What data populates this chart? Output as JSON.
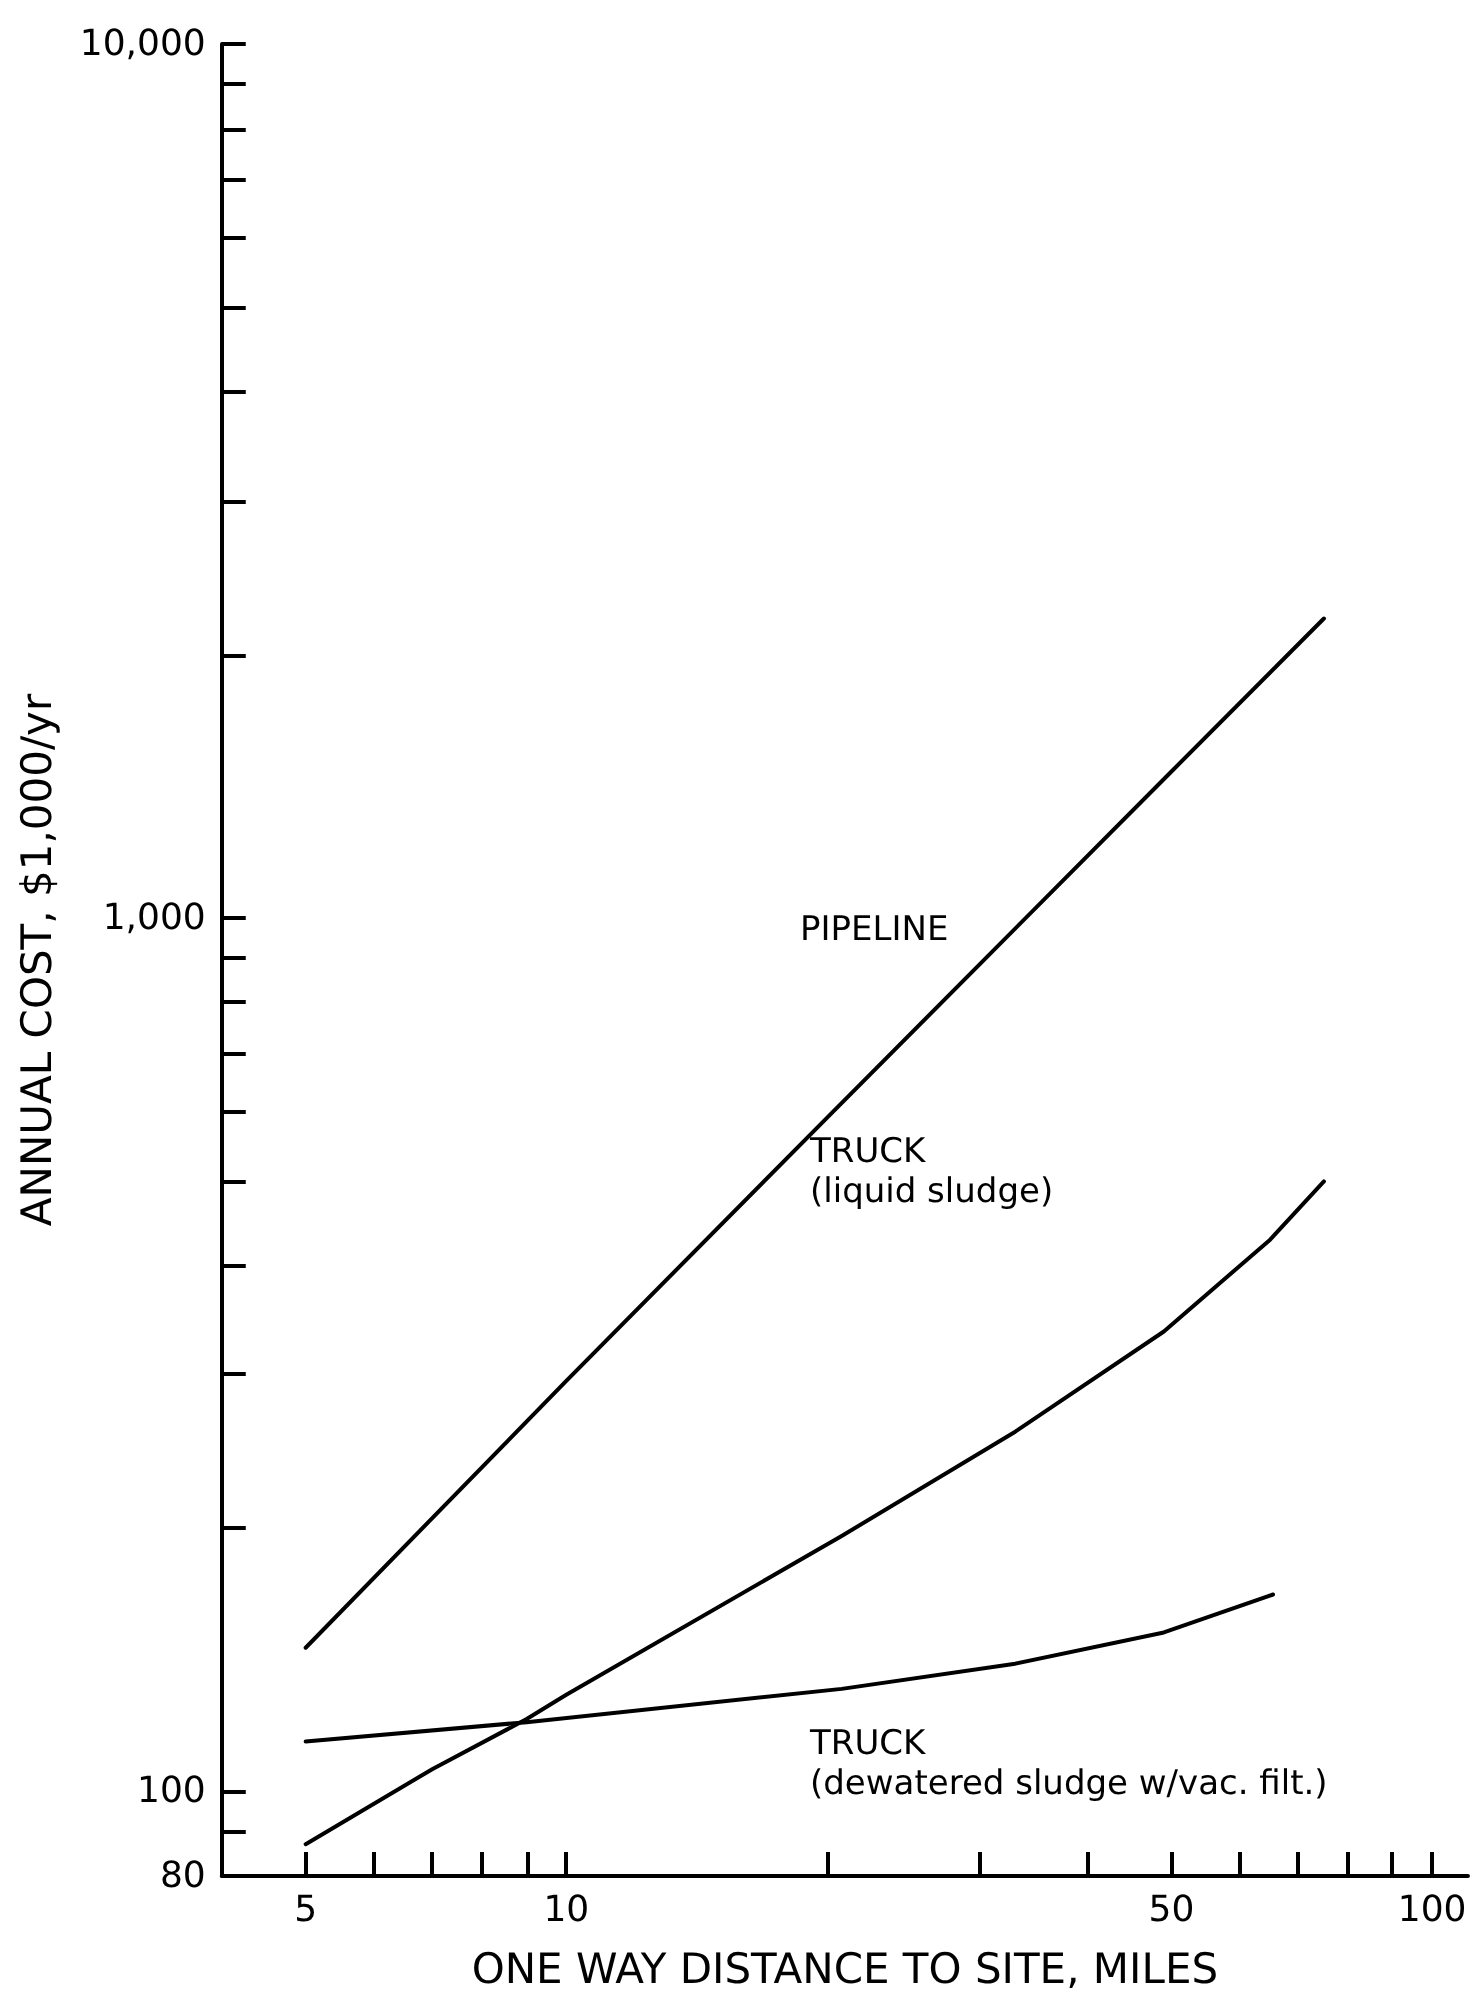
{
  "chart_data": {
    "type": "line",
    "xlabel": "ONE WAY DISTANCE TO SITE, MILES",
    "ylabel": "ANNUAL COST, $1,000/yr",
    "log": "xy",
    "grid": false,
    "marker": "none",
    "line_style": "solid",
    "xlim": [
      4,
      110
    ],
    "ylim": [
      80,
      10000
    ],
    "xticks": [
      5,
      {
        "value": 6,
        "label": null
      },
      {
        "value": 7,
        "label": null
      },
      {
        "value": 8,
        "label": null
      },
      {
        "value": 9,
        "label": null
      },
      10,
      {
        "value": 20,
        "label": null
      },
      {
        "value": 30,
        "label": null
      },
      {
        "value": 40,
        "label": null
      },
      50,
      {
        "value": 60,
        "label": null
      },
      {
        "value": 70,
        "label": null
      },
      {
        "value": 80,
        "label": null
      },
      {
        "value": 90,
        "label": null
      },
      100
    ],
    "yticks": [
      80,
      {
        "value": 90,
        "label": null
      },
      100,
      {
        "value": 200,
        "label": null
      },
      {
        "value": 300,
        "label": null
      },
      {
        "value": 400,
        "label": null
      },
      {
        "value": 500,
        "label": null
      },
      {
        "value": 600,
        "label": null
      },
      {
        "value": 700,
        "label": null
      },
      {
        "value": 800,
        "label": null
      },
      {
        "value": 900,
        "label": null
      },
      {
        "value": 1000,
        "label": "1,000"
      },
      {
        "value": 2000,
        "label": null
      },
      {
        "value": 3000,
        "label": null
      },
      {
        "value": 4000,
        "label": null
      },
      {
        "value": 5000,
        "label": null
      },
      {
        "value": 6000,
        "label": null
      },
      {
        "value": 7000,
        "label": null
      },
      {
        "value": 8000,
        "label": null
      },
      {
        "value": 9000,
        "label": null
      },
      {
        "value": 10000,
        "label": "10,000"
      }
    ],
    "series": [
      {
        "color": "#000000",
        "x": [
          5,
          10,
          20,
          50,
          75
        ],
        "values": [
          146,
          295,
          590,
          1470,
          2200
        ]
      },
      {
        "color": "#000000",
        "x": [
          5,
          7,
          9,
          10,
          20.8,
          33,
          49,
          65,
          75
        ],
        "values": [
          87,
          106,
          121,
          129,
          196,
          258,
          336,
          428,
          499
        ]
      },
      {
        "color": "#000000",
        "x": [
          5,
          9,
          20.8,
          33,
          49,
          65.5
        ],
        "values": [
          114,
          120,
          131,
          140,
          152,
          168
        ]
      }
    ],
    "annotations": [
      "PIPELINE",
      "TRUCK\n(liquid sludge)",
      "TRUCK\n(dewatered sludge w/vac. filt.)"
    ]
  }
}
